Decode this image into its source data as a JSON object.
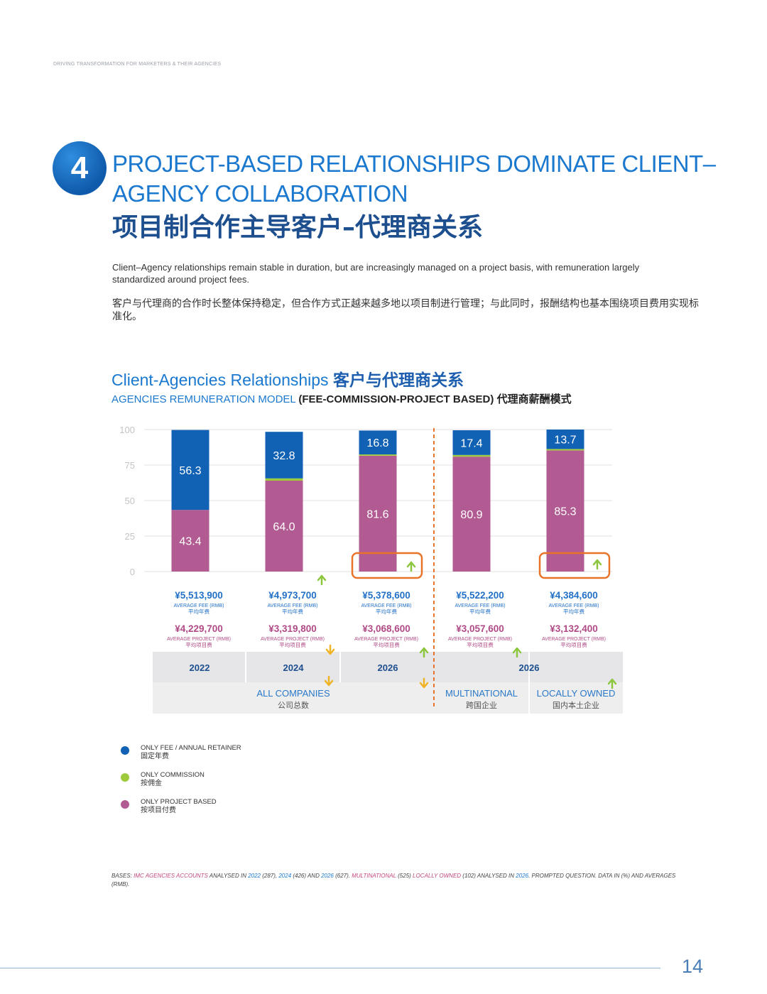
{
  "header": {
    "running_title": "DRIVING TRANSFORMATION FOR MARKETERS & THEIR AGENCIES"
  },
  "section": {
    "number": "4",
    "title_en": "PROJECT-BASED RELATIONSHIPS DOMINATE CLIENT–AGENCY COLLABORATION",
    "title_cn": "项目制合作主导客户–代理商关系",
    "description_en": "Client–Agency relationships remain stable in duration, but are increasingly managed on a project basis, with remuneration largely standardized around project fees.",
    "description_cn": "客户与代理商的合作时长整体保持稳定，但合作方式正越来越多地以项目制进行管理；与此同时，报酬结构也基本围绕项目费用实现标准化。"
  },
  "chart_header": {
    "title_en": "Client-Agencies Relationships",
    "title_cn": "客户与代理商关系",
    "subtitle_blue": "AGENCIES REMUNERATION MODEL",
    "subtitle_mid": "(FEE-COMMISSION-PROJECT BASED)",
    "subtitle_cn": "代理商薪酬模式"
  },
  "chart_data": {
    "type": "bar",
    "stacked": true,
    "ylim": [
      0,
      100
    ],
    "yticks": [
      "0",
      "25",
      "50",
      "75",
      "100"
    ],
    "grid": true,
    "categories": [
      "2022",
      "2024",
      "2026",
      "2026 MULTINATIONAL",
      "2026 LOCALLY OWNED"
    ],
    "series": [
      {
        "key": "project",
        "name": "ONLY PROJECT BASED",
        "color": "#b25a92",
        "values": [
          43.4,
          64.0,
          81.6,
          80.9,
          85.3
        ],
        "labels": [
          "43.4",
          "64.0",
          "81.6",
          "80.9",
          "85.3"
        ]
      },
      {
        "key": "commission",
        "name": "ONLY COMMISSION",
        "color": "#9ecb3c",
        "values": [
          0,
          1.6,
          0.9,
          1.2,
          1.0
        ],
        "labels": [
          "",
          "",
          "",
          "",
          ""
        ]
      },
      {
        "key": "fee",
        "name": "ONLY FEE / ANNUAL RETAINER",
        "color": "#1162b4",
        "values": [
          56.3,
          32.8,
          16.8,
          17.4,
          13.7
        ],
        "labels": [
          "56.3",
          "32.8",
          "16.8",
          "17.4",
          "13.7"
        ]
      }
    ],
    "highlight_bars": [
      2,
      4
    ],
    "averages": [
      {
        "fee": "¥5,513,900",
        "project": "¥4,229,700"
      },
      {
        "fee": "¥4,973,700",
        "project": "¥3,319,800"
      },
      {
        "fee": "¥5,378,600",
        "project": "¥3,068,600"
      },
      {
        "fee": "¥5,522,200",
        "project": "¥3,057,600"
      },
      {
        "fee": "¥4,384,600",
        "project": "¥3,132,400"
      }
    ],
    "avg_fee_label": "AVERAGE FEE (RMB)",
    "avg_fee_label_cn": "平均年费",
    "avg_project_label": "AVERAGE PROJECT (RMB)",
    "avg_project_label_cn": "平均项目费",
    "year_labels": [
      "2022",
      "2024",
      "2026",
      "2026"
    ],
    "groups": [
      {
        "name": "ALL COMPANIES",
        "name_cn": "公司总数"
      },
      {
        "name": "MULTINATIONAL",
        "name_cn": "跨国企业"
      },
      {
        "name": "LOCALLY OWNED",
        "name_cn": "国内本土企业"
      }
    ]
  },
  "legend": [
    {
      "label": "ONLY FEE / ANNUAL RETAINER",
      "label_cn": "固定年费",
      "color": "#1162b4"
    },
    {
      "label": "ONLY COMMISSION",
      "label_cn": "按佣金",
      "color": "#9ecb3c"
    },
    {
      "label": "ONLY PROJECT BASED",
      "label_cn": "按项目付费",
      "color": "#b25a92"
    }
  ],
  "bases": {
    "p1": "BASES: ",
    "p2": "IMC AGENCIES ACCOUNTS",
    "p3": " ANALYSED IN ",
    "p4": "2022",
    "p5": " (287), ",
    "p6": "2024",
    "p7": " (426) AND ",
    "p8": "2026",
    "p9": " (627). ",
    "p10": "MULTINATIONAL",
    "p11": " (525) ",
    "p12": "LOCALLY OWNED",
    "p13": " (102) ANALYSED IN ",
    "p14": "2026",
    "p15": ". PROMPTED QUESTION. DATA IN (%) AND AVERAGES (RMB)."
  },
  "page_number": "14"
}
